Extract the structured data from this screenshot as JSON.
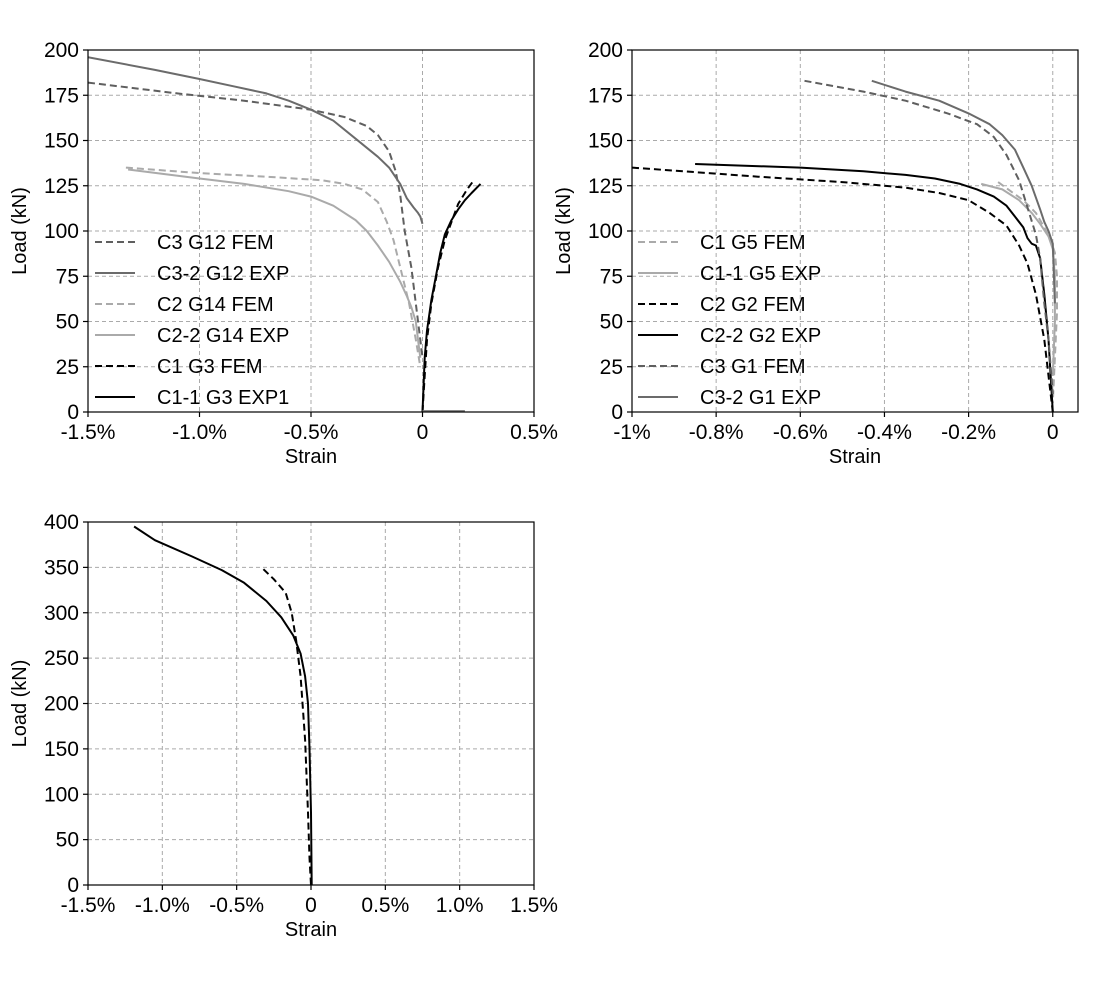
{
  "chart_data": [
    {
      "type": "line",
      "xlabel": "Strain",
      "ylabel": "Load (kN)",
      "xlim": [
        -1.5,
        0.5
      ],
      "ylim": [
        0,
        200
      ],
      "xticks": [
        -1.5,
        -1.0,
        -0.5,
        0,
        0.5
      ],
      "xtick_labels": [
        "-1.5%",
        "-1.0%",
        "-0.5%",
        "0",
        "0.5%"
      ],
      "yticks": [
        0,
        25,
        50,
        75,
        100,
        125,
        150,
        175,
        200
      ],
      "ytick_labels": [
        "0",
        "25",
        "50",
        "75",
        "100",
        "125",
        "150",
        "175",
        "200"
      ],
      "grid": true,
      "legend_position": "lower-left",
      "series": [
        {
          "name": "C3 G12 FEM",
          "color": "#5f5f5f",
          "dashed": true,
          "x": [
            -1.5,
            -1.1,
            -0.8,
            -0.5,
            -0.35,
            -0.25,
            -0.2,
            -0.15,
            -0.12,
            -0.1,
            -0.08,
            -0.05,
            -0.03,
            -0.01,
            0
          ],
          "y": [
            182,
            176,
            172,
            167,
            163,
            158,
            153,
            144,
            133,
            120,
            100,
            80,
            60,
            40,
            30
          ]
        },
        {
          "name": "C3-2 G12 EXP",
          "color": "#6b6b6b",
          "dashed": false,
          "x": [
            -1.5,
            -1.2,
            -1.0,
            -0.85,
            -0.7,
            -0.6,
            -0.5,
            -0.4,
            -0.3,
            -0.2,
            -0.15,
            -0.1,
            -0.07,
            -0.04,
            -0.02,
            -0.01,
            0
          ],
          "y": [
            196,
            189,
            184,
            180,
            176,
            172,
            167,
            161,
            151,
            141,
            135,
            126,
            118,
            113,
            110,
            108,
            104
          ]
        },
        {
          "name": "C2 G14 FEM",
          "color": "#aaaaaa",
          "dashed": true,
          "x": [
            -1.33,
            -1.0,
            -0.7,
            -0.45,
            -0.35,
            -0.27,
            -0.2,
            -0.16,
            -0.13,
            -0.1,
            -0.06,
            -0.03,
            -0.01
          ],
          "y": [
            135,
            132,
            130,
            128,
            126,
            123,
            116,
            105,
            95,
            80,
            60,
            40,
            25
          ]
        },
        {
          "name": "C2-2 G14 EXP",
          "color": "#aaaaaa",
          "dashed": false,
          "x": [
            -1.32,
            -1.0,
            -0.8,
            -0.6,
            -0.5,
            -0.4,
            -0.3,
            -0.25,
            -0.2,
            -0.15,
            -0.1,
            -0.07,
            -0.05,
            -0.03,
            -0.02,
            -0.01
          ],
          "y": [
            134,
            129,
            126,
            122,
            119,
            114,
            106,
            100,
            92,
            83,
            72,
            64,
            58,
            50,
            40,
            30
          ]
        },
        {
          "name": "C1 G3 FEM",
          "color": "#000000",
          "dashed": true,
          "x": [
            0,
            0.01,
            0.02,
            0.04,
            0.07,
            0.1,
            0.13,
            0.16,
            0.2,
            0.23
          ],
          "y": [
            0,
            20,
            40,
            60,
            80,
            95,
            105,
            115,
            123,
            128
          ]
        },
        {
          "name": "C1-1 G3 EXP1",
          "color": "#000000",
          "dashed": false,
          "x": [
            0,
            0.005,
            0.01,
            0.02,
            0.04,
            0.06,
            0.08,
            0.1,
            0.13,
            0.16,
            0.19,
            0.22,
            0.26
          ],
          "y": [
            0,
            15,
            30,
            45,
            62,
            75,
            88,
            98,
            106,
            112,
            117,
            121,
            126
          ]
        },
        {
          "name": "",
          "color": "#777777",
          "dashed": false,
          "x": [
            0,
            0.19
          ],
          "y": [
            0.5,
            0.5
          ]
        }
      ]
    },
    {
      "type": "line",
      "xlabel": "Strain",
      "ylabel": "Load (kN)",
      "xlim": [
        -1.0,
        0.06
      ],
      "ylim": [
        0,
        200
      ],
      "xticks": [
        -1.0,
        -0.8,
        -0.6,
        -0.4,
        -0.2,
        0
      ],
      "xtick_labels": [
        "-1%",
        "-0.8%",
        "-0.6%",
        "-0.4%",
        "-0.2%",
        "0"
      ],
      "yticks": [
        0,
        25,
        50,
        75,
        100,
        125,
        150,
        175,
        200
      ],
      "ytick_labels": [
        "0",
        "25",
        "50",
        "75",
        "100",
        "125",
        "150",
        "175",
        "200"
      ],
      "grid": true,
      "legend_position": "lower-left",
      "series": [
        {
          "name": "C1 G5 FEM",
          "color": "#aaaaaa",
          "dashed": true,
          "x": [
            -0.13,
            -0.1,
            -0.07,
            -0.04,
            -0.02,
            -0.005,
            0.005,
            0.01,
            0.01,
            0.005,
            0
          ],
          "y": [
            127,
            122,
            117,
            110,
            102,
            95,
            88,
            75,
            55,
            30,
            5
          ]
        },
        {
          "name": "C1-1 G5 EXP",
          "color": "#aaaaaa",
          "dashed": false,
          "x": [
            -0.17,
            -0.12,
            -0.08,
            -0.05,
            -0.03,
            -0.01,
            0,
            0.005,
            0.005,
            0
          ],
          "y": [
            126,
            123,
            117,
            110,
            104,
            97,
            90,
            75,
            50,
            20
          ]
        },
        {
          "name": "C2 G2 FEM",
          "color": "#000000",
          "dashed": true,
          "x": [
            -1.0,
            -0.7,
            -0.5,
            -0.35,
            -0.27,
            -0.2,
            -0.15,
            -0.11,
            -0.08,
            -0.06,
            -0.04,
            -0.02,
            -0.01,
            0
          ],
          "y": [
            135,
            130,
            127,
            124,
            121,
            117,
            110,
            103,
            92,
            82,
            65,
            40,
            20,
            0
          ]
        },
        {
          "name": "C2-2 G2 EXP",
          "color": "#000000",
          "dashed": false,
          "x": [
            -0.85,
            -0.6,
            -0.45,
            -0.35,
            -0.28,
            -0.22,
            -0.18,
            -0.14,
            -0.11,
            -0.09,
            -0.07,
            -0.06,
            -0.05,
            -0.04,
            -0.03,
            -0.02,
            -0.01,
            0
          ],
          "y": [
            137,
            135,
            133,
            131,
            129,
            126,
            123,
            119,
            114,
            108,
            102,
            96,
            93,
            92,
            85,
            65,
            40,
            0
          ]
        },
        {
          "name": "C3 G1 FEM",
          "color": "#5f5f5f",
          "dashed": true,
          "x": [
            -0.59,
            -0.45,
            -0.35,
            -0.25,
            -0.18,
            -0.14,
            -0.11,
            -0.08,
            -0.06,
            -0.04,
            -0.03,
            -0.02,
            -0.01,
            0
          ],
          "y": [
            183,
            177,
            172,
            165,
            159,
            152,
            142,
            128,
            113,
            98,
            85,
            60,
            40,
            10
          ]
        },
        {
          "name": "C3-2 G1 EXP",
          "color": "#6b6b6b",
          "dashed": false,
          "x": [
            -0.43,
            -0.35,
            -0.27,
            -0.2,
            -0.15,
            -0.12,
            -0.09,
            -0.07,
            -0.05,
            -0.03,
            -0.02,
            -0.01,
            0,
            0.005
          ],
          "y": [
            183,
            177,
            172,
            165,
            159,
            153,
            145,
            135,
            125,
            112,
            105,
            100,
            93,
            60
          ]
        }
      ]
    },
    {
      "type": "line",
      "xlabel": "Strain",
      "ylabel": "Load (kN)",
      "xlim": [
        -1.5,
        1.5
      ],
      "ylim": [
        0,
        400
      ],
      "xticks": [
        -1.5,
        -1.0,
        -0.5,
        0,
        0.5,
        1.0,
        1.5
      ],
      "xtick_labels": [
        "-1.5%",
        "-1.0%",
        "-0.5%",
        "0",
        "0.5%",
        "1.0%",
        "1.5%"
      ],
      "yticks": [
        0,
        50,
        100,
        150,
        200,
        250,
        300,
        350,
        400
      ],
      "ytick_labels": [
        "0",
        "50",
        "100",
        "150",
        "200",
        "250",
        "300",
        "350",
        "400"
      ],
      "grid": true,
      "series": [
        {
          "name": "",
          "color": "#000000",
          "dashed": true,
          "x": [
            -0.32,
            -0.25,
            -0.17,
            -0.13,
            -0.1,
            -0.07,
            -0.04,
            -0.02,
            -0.01,
            0
          ],
          "y": [
            348,
            337,
            322,
            300,
            270,
            230,
            160,
            80,
            30,
            0
          ]
        },
        {
          "name": "",
          "color": "#000000",
          "dashed": false,
          "x": [
            -1.19,
            -1.05,
            -0.8,
            -0.6,
            -0.45,
            -0.3,
            -0.2,
            -0.12,
            -0.07,
            -0.04,
            -0.02,
            -0.01,
            0,
            0.005
          ],
          "y": [
            395,
            380,
            362,
            347,
            333,
            313,
            295,
            275,
            255,
            230,
            200,
            150,
            80,
            0
          ]
        }
      ]
    }
  ]
}
